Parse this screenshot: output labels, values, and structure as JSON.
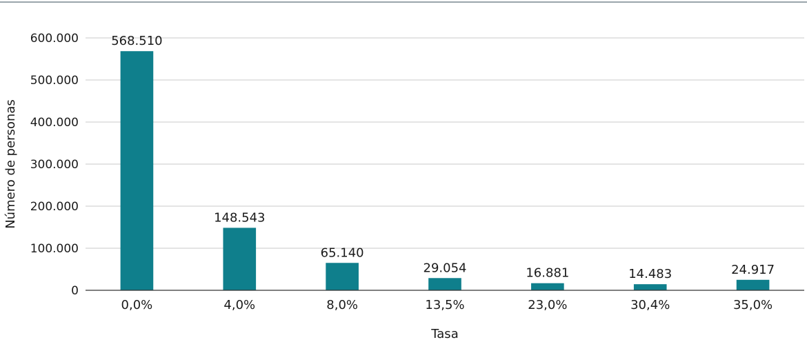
{
  "chart_data": {
    "type": "bar",
    "title": "",
    "xlabel": "Tasa",
    "ylabel": "Número de personas",
    "categories": [
      "0,0%",
      "4,0%",
      "8,0%",
      "13,5%",
      "23,0%",
      "30,4%",
      "35,0%"
    ],
    "values": [
      568510,
      148543,
      65140,
      29054,
      16881,
      14483,
      24917
    ],
    "value_labels": [
      "568.510",
      "148.543",
      "65.140",
      "29.054",
      "16.881",
      "14.483",
      "24.917"
    ],
    "ylim": [
      0,
      600000
    ],
    "yticks": [
      0,
      100000,
      200000,
      300000,
      400000,
      500000,
      600000
    ],
    "ytick_labels": [
      "0",
      "100.000",
      "200.000",
      "300.000",
      "400.000",
      "500.000",
      "600.000"
    ],
    "grid": true,
    "legend": "none",
    "bar_color": "#0f7f8c"
  }
}
